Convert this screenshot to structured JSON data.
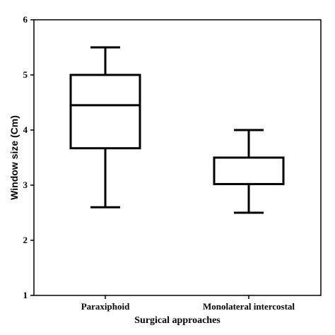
{
  "chart_data": {
    "type": "box",
    "title": "",
    "xlabel": "Surgical approaches",
    "ylabel": "Window size (Cm)",
    "ylim": [
      1,
      6
    ],
    "yticks": [
      1,
      2,
      3,
      4,
      5,
      6
    ],
    "grid": false,
    "categories": [
      "Paraxiphoid",
      "Monolateral intercostal"
    ],
    "boxes": [
      {
        "category": "Paraxiphoid",
        "whisker_low": 2.6,
        "q1": 3.67,
        "median": 4.45,
        "q3": 5.0,
        "whisker_high": 5.5
      },
      {
        "category": "Monolateral intercostal",
        "whisker_low": 2.5,
        "q1": 3.02,
        "median": 3.5,
        "q3": 3.5,
        "whisker_high": 4.0
      }
    ]
  }
}
